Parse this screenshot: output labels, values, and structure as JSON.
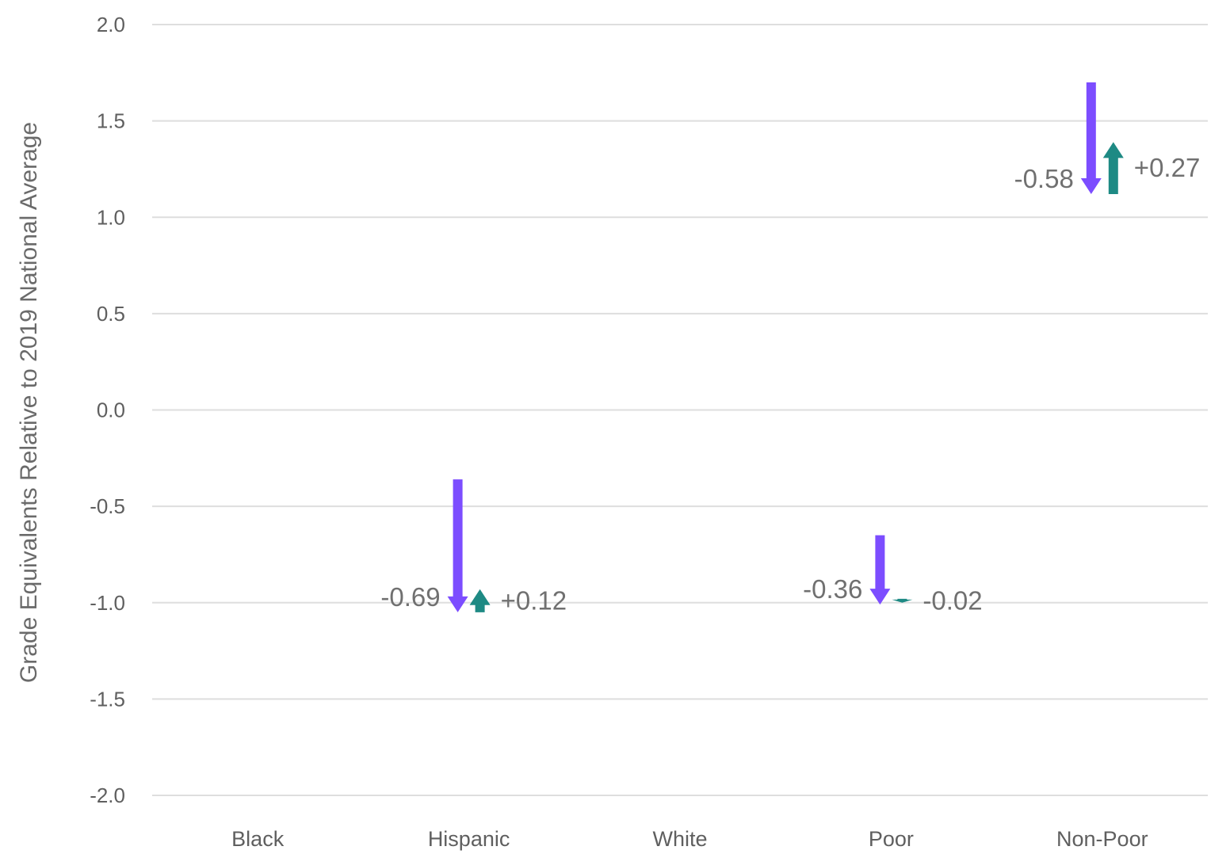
{
  "chart_data": {
    "type": "arrow",
    "ylabel": "Grade Equivalents Relative to 2019 National Average",
    "xlabel": "",
    "ylim": [
      -2.0,
      2.0
    ],
    "yticks": [
      "2.0",
      "1.5",
      "1.0",
      "0.5",
      "0.0",
      "-0.5",
      "-1.0",
      "-1.5",
      "-2.0"
    ],
    "ytick_values": [
      2.0,
      1.5,
      1.0,
      0.5,
      0.0,
      -0.5,
      -1.0,
      -1.5,
      -2.0
    ],
    "grid": true,
    "categories": [
      "Black",
      "Hispanic",
      "White",
      "Poor",
      "Non-Poor"
    ],
    "series": [
      {
        "color": "#7c4dff",
        "points": [
          {
            "category": "Hispanic",
            "start": -0.36,
            "end": -1.05,
            "label": "-0.69"
          },
          {
            "category": "Poor",
            "start": -0.65,
            "end": -1.01,
            "label": "-0.36"
          },
          {
            "category": "Non-Poor",
            "start": 1.7,
            "end": 1.12,
            "label": "-0.58"
          }
        ]
      },
      {
        "color": "#1e8a84",
        "points": [
          {
            "category": "Hispanic",
            "start": -1.05,
            "end": -0.93,
            "label": "+0.12"
          },
          {
            "category": "Poor",
            "start": -0.98,
            "end": -1.0,
            "label": "-0.02"
          },
          {
            "category": "Non-Poor",
            "start": 1.12,
            "end": 1.39,
            "label": "+0.27"
          }
        ]
      }
    ]
  }
}
